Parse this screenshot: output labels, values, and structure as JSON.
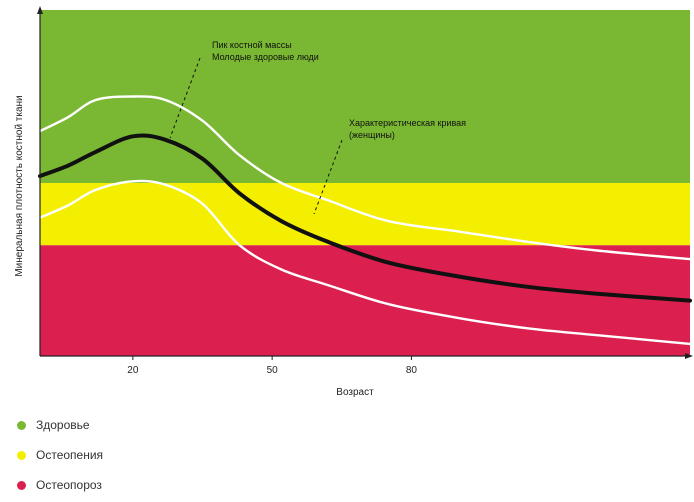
{
  "chart_data": {
    "type": "line",
    "ylabel": "Минеральная плотность костной ткани",
    "xlabel": "Возраст",
    "x_ticks": [
      20,
      50,
      80
    ],
    "xlim": [
      0,
      140
    ],
    "ylim": [
      0,
      100
    ],
    "grid": false,
    "zones": [
      {
        "name": "Здоровье",
        "from": 50,
        "to": 100,
        "color": "#7ab833"
      },
      {
        "name": "Остеопения",
        "from": 32,
        "to": 50,
        "color": "#f4ee00"
      },
      {
        "name": "Остеопороз",
        "from": 0,
        "to": 32,
        "color": "#db1f4e"
      }
    ],
    "series": [
      {
        "role": "mean",
        "color": "#111111",
        "x": [
          0,
          6,
          12,
          20,
          27,
          35,
          43,
          52,
          62,
          75,
          90,
          105,
          120,
          140
        ],
        "values": [
          52,
          55,
          59,
          63.5,
          62.5,
          57,
          47,
          39,
          33,
          27,
          23,
          20,
          18,
          16
        ]
      },
      {
        "role": "upper",
        "color": "#ffffff",
        "x": [
          0,
          6,
          12,
          20,
          27,
          35,
          43,
          52,
          62,
          75,
          90,
          105,
          120,
          140
        ],
        "values": [
          65,
          69,
          74,
          75,
          74,
          68,
          58,
          50,
          45,
          39,
          36,
          33,
          30.5,
          28
        ]
      },
      {
        "role": "lower",
        "color": "#ffffff",
        "x": [
          0,
          6,
          12,
          20,
          27,
          35,
          43,
          52,
          62,
          75,
          90,
          105,
          120,
          140
        ],
        "values": [
          40,
          43.5,
          48,
          50.5,
          49.5,
          44,
          32,
          25,
          20.5,
          15,
          11,
          8,
          6,
          3.5
        ]
      }
    ],
    "annotations": [
      {
        "lines": [
          "Пик костной массы",
          "Молодые здоровые люди"
        ],
        "points_to": "peak"
      },
      {
        "lines": [
          "Характеристическая кривая",
          "(женщины)"
        ],
        "points_to": "mean"
      }
    ]
  },
  "legend": {
    "items": [
      {
        "label": "Здоровье",
        "color": "#7ab833"
      },
      {
        "label": "Остеопения",
        "color": "#f4ee00"
      },
      {
        "label": "Остеопороз",
        "color": "#db1f4e"
      }
    ]
  }
}
